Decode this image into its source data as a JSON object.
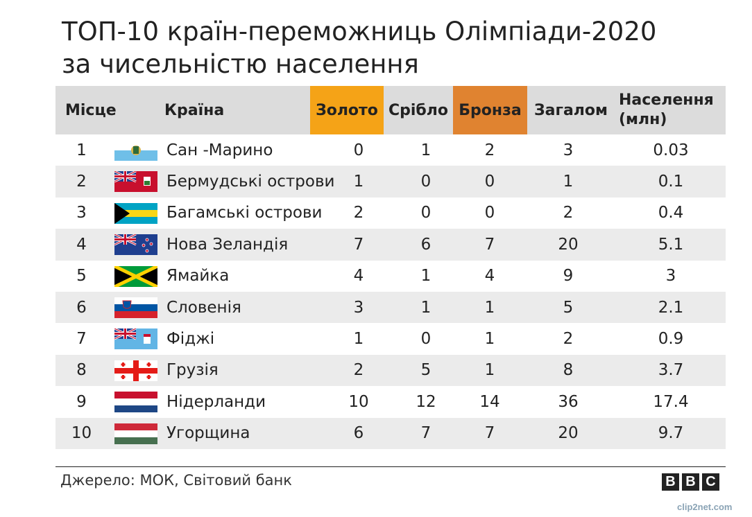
{
  "chart_data": {
    "type": "table",
    "title_lines": [
      "ТОП-10 країн-переможниць Олімпіади-2020",
      "за чисельністю населення"
    ],
    "columns": {
      "rank": "Місце",
      "country": "Країна",
      "gold": "Золото",
      "silver": "Срібло",
      "bronze": "Бронза",
      "total": "Загалом",
      "population_line1": "Населення",
      "population_line2": "(млн)"
    },
    "colors": {
      "gold": "#f5a317",
      "bronze": "#e08330",
      "header_bg": "#dcdcdc",
      "row_shade": "#ebebeb"
    },
    "rows": [
      {
        "rank": "1",
        "flag": "san-marino-flag",
        "country": "Сан -Марино",
        "gold": "0",
        "silver": "1",
        "bronze": "2",
        "total": "3",
        "population": "0.03"
      },
      {
        "rank": "2",
        "flag": "bermuda-flag",
        "country": "Бермудські острови",
        "gold": "1",
        "silver": "0",
        "bronze": "0",
        "total": "1",
        "population": "0.1"
      },
      {
        "rank": "3",
        "flag": "bahamas-flag",
        "country": "Багамські острови",
        "gold": "2",
        "silver": "0",
        "bronze": "0",
        "total": "2",
        "population": "0.4"
      },
      {
        "rank": "4",
        "flag": "new-zealand-flag",
        "country": "Нова Зеландія",
        "gold": "7",
        "silver": "6",
        "bronze": "7",
        "total": "20",
        "population": "5.1"
      },
      {
        "rank": "5",
        "flag": "jamaica-flag",
        "country": "Ямайка",
        "gold": "4",
        "silver": "1",
        "bronze": "4",
        "total": "9",
        "population": "3"
      },
      {
        "rank": "6",
        "flag": "slovenia-flag",
        "country": "Словенія",
        "gold": "3",
        "silver": "1",
        "bronze": "1",
        "total": "5",
        "population": "2.1"
      },
      {
        "rank": "7",
        "flag": "fiji-flag",
        "country": "Фіджі",
        "gold": "1",
        "silver": "0",
        "bronze": "1",
        "total": "2",
        "population": "0.9"
      },
      {
        "rank": "8",
        "flag": "georgia-flag",
        "country": "Грузія",
        "gold": "2",
        "silver": "5",
        "bronze": "1",
        "total": "8",
        "population": "3.7"
      },
      {
        "rank": "9",
        "flag": "netherlands-flag",
        "country": "Нідерланди",
        "gold": "10",
        "silver": "12",
        "bronze": "14",
        "total": "36",
        "population": "17.4"
      },
      {
        "rank": "10",
        "flag": "hungary-flag",
        "country": "Угорщина",
        "gold": "6",
        "silver": "7",
        "bronze": "7",
        "total": "20",
        "population": "9.7"
      }
    ]
  },
  "footer": {
    "source": "Джерело: МОК, Світовий банк",
    "logo_letters": [
      "B",
      "B",
      "C"
    ],
    "watermark": "clip2net.com"
  }
}
